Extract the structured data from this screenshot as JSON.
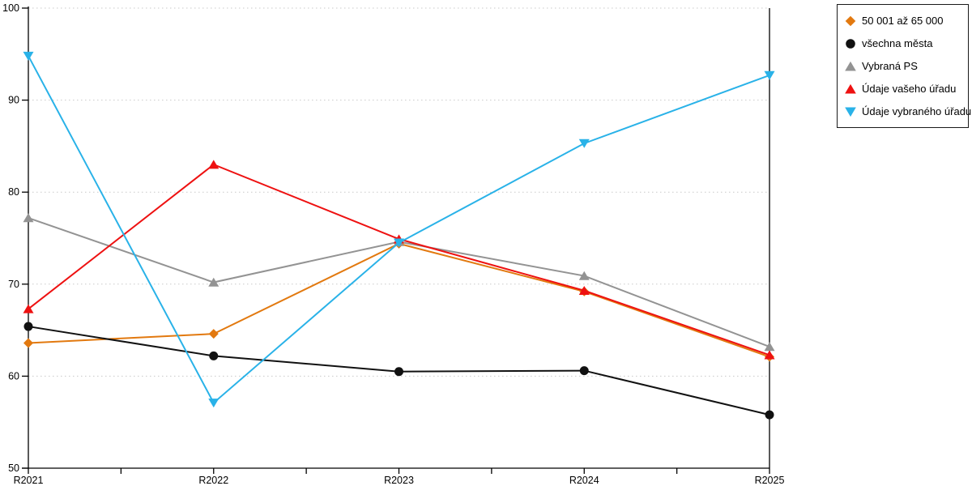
{
  "chart_data": {
    "type": "line",
    "title": "",
    "xlabel": "",
    "ylabel": "",
    "x": [
      "R2021",
      "R2022",
      "R2023",
      "R2024",
      "R2025"
    ],
    "ylim": [
      50,
      100
    ],
    "yticks": [
      50,
      60,
      70,
      80,
      90,
      100
    ],
    "grid": "horizontal dotted lines at 60,70,80,90,100",
    "legend_position": "outside top-right, bordered box",
    "series": [
      {
        "name": "50 001 až 65 000",
        "marker": "diamond",
        "color": "#E2790F",
        "values": [
          63.6,
          64.6,
          74.4,
          69.2,
          62.1
        ]
      },
      {
        "name": "všechna města",
        "marker": "circle",
        "color": "#111111",
        "values": [
          65.4,
          62.2,
          60.5,
          60.6,
          55.8
        ]
      },
      {
        "name": "Vybraná PS",
        "marker": "triangle-up",
        "color": "#939393",
        "values": [
          77.2,
          70.2,
          74.6,
          70.9,
          63.2
        ]
      },
      {
        "name": "Údaje vašeho úřadu",
        "marker": "triangle-up",
        "color": "#EE1111",
        "values": [
          67.3,
          83.0,
          74.9,
          69.3,
          62.3
        ]
      },
      {
        "name": "Údaje vybraného úřadu",
        "marker": "triangle-down",
        "color": "#29B2E8",
        "values": [
          94.8,
          57.1,
          74.5,
          85.3,
          92.7
        ]
      }
    ]
  },
  "colors": {
    "background": "#ffffff",
    "axis": "#000000",
    "gridline": "#c9c9c9",
    "tick_text": "#000000"
  }
}
